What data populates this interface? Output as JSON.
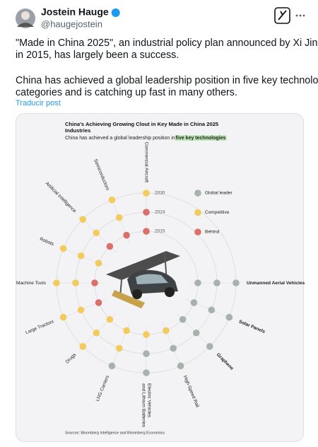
{
  "post": {
    "author": "Jostein Hauge",
    "handle": "@haugejostein",
    "text_lines": [
      "\"Made in China 2025\", an industrial policy plan announced by Xi Jinping",
      "in 2015, has largely been a success.",
      "China has achieved a global leadership position in five key technology",
      "categories and is catching up fast in many others."
    ],
    "translate": "Traducir post"
  },
  "chart_data": {
    "type": "radial-dot",
    "title_lines": [
      "China's Achieving Growing Clout in Key Made in China 2025",
      "Industries"
    ],
    "subtitle": "China has achieved a global leadership position in ",
    "subtitle_highlight": "five key technologies",
    "source": "Sources: Bloomberg Intelligence and Bloomberg Economics",
    "rings": [
      "2015",
      "2024",
      "2030"
    ],
    "legend": [
      {
        "name": "Global leader",
        "color": "#a8b2ad"
      },
      {
        "name": "Competitive",
        "color": "#f2cb5c"
      },
      {
        "name": "Behind",
        "color": "#dc6f6b"
      }
    ],
    "categories": [
      {
        "label": [
          "Commercial Aircraft"
        ],
        "status": [
          "Behind",
          "Behind",
          "Competitive"
        ]
      },
      {
        "label": [
          "Semiconductors"
        ],
        "status": [
          "Behind",
          "Competitive",
          "Competitive"
        ]
      },
      {
        "label": [
          "Artificial Intelligence"
        ],
        "status": [
          "Behind",
          "Competitive",
          "Competitive"
        ]
      },
      {
        "label": [
          "Robots"
        ],
        "status": [
          "Competitive",
          "Competitive",
          "Competitive"
        ]
      },
      {
        "label": [
          "Machine Tools"
        ],
        "status": [
          "Behind",
          "Competitive",
          "Competitive"
        ]
      },
      {
        "label": [
          "Large Tractors"
        ],
        "status": [
          "Behind",
          "Competitive",
          "Competitive"
        ]
      },
      {
        "label": [
          "Drugs"
        ],
        "status": [
          "Competitive",
          "Competitive",
          "Competitive"
        ]
      },
      {
        "label": [
          "LNG Carriers"
        ],
        "status": [
          "Competitive",
          "Competitive",
          "Global leader"
        ]
      },
      {
        "label": [
          "Electric Vehicles",
          "and Lithium Batteries"
        ],
        "status": [
          "Competitive",
          "Global leader",
          "Global leader"
        ]
      },
      {
        "label": [
          "High-Speed Rail"
        ],
        "status": [
          "Competitive",
          "Global leader",
          "Global leader"
        ]
      },
      {
        "label": [
          "Graphene"
        ],
        "status": [
          "Global leader",
          "Global leader",
          "Global leader"
        ]
      },
      {
        "label": [
          "Solar Panels"
        ],
        "status": [
          "Global leader",
          "Global leader",
          "Global leader"
        ]
      },
      {
        "label": [
          "Unmanned Aerial Vehicles"
        ],
        "status": [
          "Global leader",
          "Global leader",
          "Global leader"
        ]
      }
    ]
  }
}
